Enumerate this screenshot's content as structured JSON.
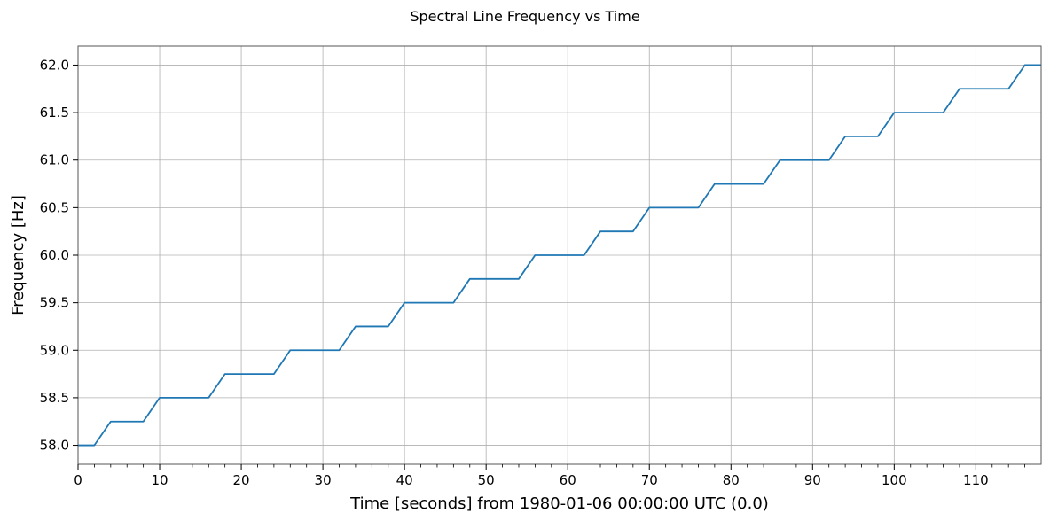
{
  "chart_data": {
    "type": "line",
    "title": "Spectral Line Frequency vs Time",
    "xlabel": "Time [seconds] from 1980-01-06 00:00:00 UTC (0.0)",
    "ylabel": "Frequency [Hz]",
    "xlim": [
      0,
      118
    ],
    "ylim": [
      57.8,
      62.2
    ],
    "grid": true,
    "xticks": [
      0,
      10,
      20,
      30,
      40,
      50,
      60,
      70,
      80,
      90,
      100,
      110
    ],
    "xtick_labels": [
      "0",
      "10",
      "20",
      "30",
      "40",
      "50",
      "60",
      "70",
      "80",
      "90",
      "100",
      "110"
    ],
    "xminor": [
      2,
      4,
      6,
      8,
      12,
      14,
      16,
      18,
      22,
      24,
      26,
      28,
      32,
      34,
      36,
      38,
      42,
      44,
      46,
      48,
      52,
      54,
      56,
      58,
      62,
      64,
      66,
      68,
      72,
      74,
      76,
      78,
      82,
      84,
      86,
      88,
      92,
      94,
      96,
      98,
      102,
      104,
      106,
      108,
      112,
      114,
      116
    ],
    "yticks": [
      58.0,
      58.5,
      59.0,
      59.5,
      60.0,
      60.5,
      61.0,
      61.5,
      62.0
    ],
    "ytick_labels": [
      "58.0",
      "58.5",
      "59.0",
      "59.5",
      "60.0",
      "60.5",
      "61.0",
      "61.5",
      "62.0"
    ],
    "series": [
      {
        "color": "#1f77b4",
        "x": [
          0,
          2,
          4,
          6,
          8,
          10,
          12,
          14,
          16,
          18,
          20,
          22,
          24,
          26,
          28,
          30,
          32,
          34,
          36,
          38,
          40,
          42,
          44,
          46,
          48,
          50,
          52,
          54,
          56,
          58,
          60,
          62,
          64,
          66,
          68,
          70,
          72,
          74,
          76,
          78,
          80,
          82,
          84,
          86,
          88,
          90,
          92,
          94,
          96,
          98,
          100,
          102,
          104,
          106,
          108,
          110,
          112,
          114,
          116,
          118
        ],
        "y": [
          58.0,
          58.0,
          58.25,
          58.25,
          58.25,
          58.5,
          58.5,
          58.5,
          58.5,
          58.75,
          58.75,
          58.75,
          58.75,
          59.0,
          59.0,
          59.0,
          59.0,
          59.25,
          59.25,
          59.25,
          59.5,
          59.5,
          59.5,
          59.5,
          59.75,
          59.75,
          59.75,
          59.75,
          60.0,
          60.0,
          60.0,
          60.0,
          60.25,
          60.25,
          60.25,
          60.5,
          60.5,
          60.5,
          60.5,
          60.75,
          60.75,
          60.75,
          60.75,
          61.0,
          61.0,
          61.0,
          61.0,
          61.25,
          61.25,
          61.25,
          61.5,
          61.5,
          61.5,
          61.5,
          61.75,
          61.75,
          61.75,
          61.75,
          62.0,
          62.0
        ]
      }
    ]
  }
}
